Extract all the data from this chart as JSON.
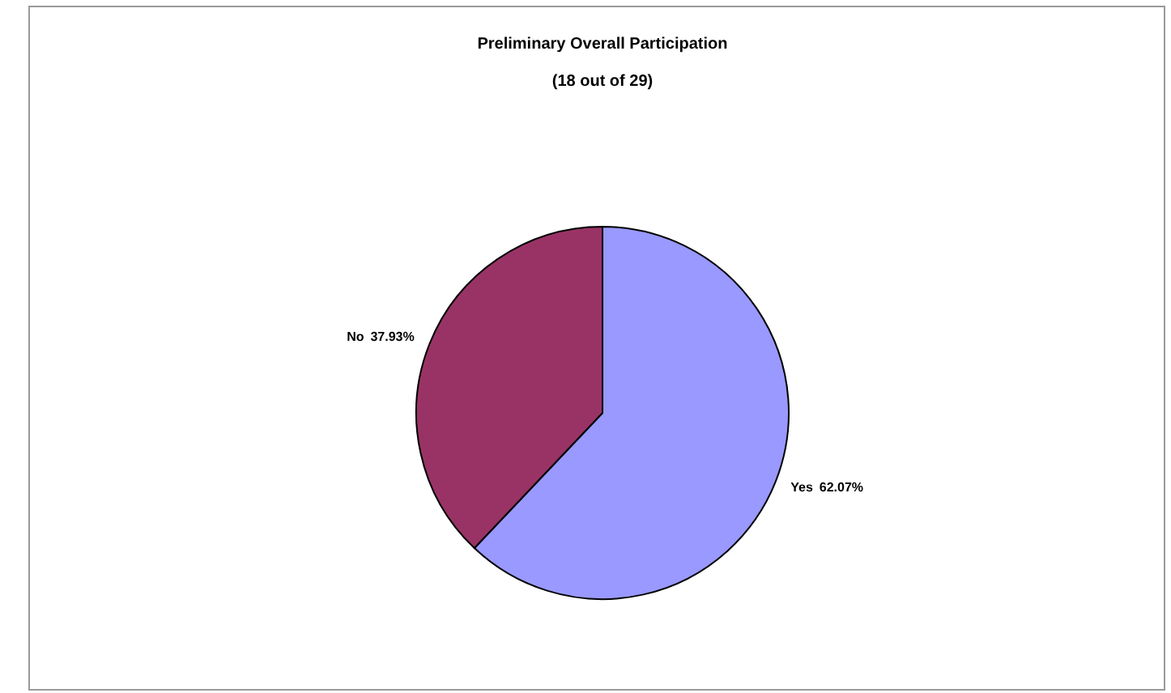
{
  "chart_data": {
    "type": "pie",
    "title": "Preliminary Overall Participation",
    "subtitle": "(18 out of 29)",
    "categories": [
      "Yes",
      "No"
    ],
    "values": [
      62.07,
      37.93
    ],
    "colors": [
      "#9999ff",
      "#993366"
    ],
    "value_labels": [
      "62.07%",
      "37.93%"
    ]
  }
}
